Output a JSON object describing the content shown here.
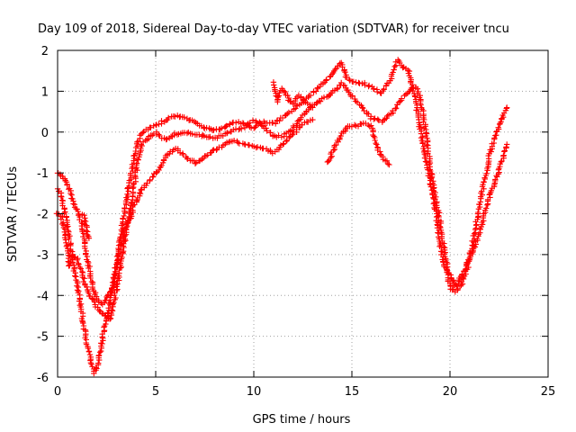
{
  "chart_data": {
    "type": "scatter",
    "title": "Day 109 of 2018, Sidereal Day-to-day VTEC variation (SDTVAR) for receiver tncu",
    "xlabel": "GPS time / hours",
    "ylabel": "SDTVAR / TECUs",
    "xlim": [
      0,
      25
    ],
    "ylim": [
      -6,
      2
    ],
    "xticks": [
      0,
      5,
      10,
      15,
      20,
      25
    ],
    "yticks": [
      -6,
      -5,
      -4,
      -3,
      -2,
      -1,
      0,
      1,
      2
    ],
    "grid": true,
    "marker": "plus",
    "color": "#ff0000",
    "series": [
      {
        "points": [
          [
            0.0,
            -1.0
          ],
          [
            0.2,
            -1.05
          ],
          [
            0.4,
            -1.2
          ],
          [
            0.6,
            -1.4
          ],
          [
            0.8,
            -1.7
          ],
          [
            1.0,
            -1.9
          ],
          [
            1.2,
            -2.2
          ],
          [
            1.3,
            -2.5
          ],
          [
            1.4,
            -2.8
          ],
          [
            1.6,
            -3.3
          ],
          [
            1.8,
            -3.8
          ],
          [
            2.0,
            -4.1
          ],
          [
            2.3,
            -4.2
          ],
          [
            2.5,
            -4.1
          ],
          [
            2.8,
            -3.8
          ],
          [
            3.0,
            -3.3
          ],
          [
            3.2,
            -2.6
          ],
          [
            3.4,
            -2.0
          ],
          [
            3.6,
            -1.4
          ],
          [
            3.8,
            -0.9
          ],
          [
            4.0,
            -0.4
          ],
          [
            4.2,
            -0.1
          ],
          [
            4.5,
            0.05
          ],
          [
            5.0,
            0.15
          ],
          [
            5.5,
            0.3
          ],
          [
            6.0,
            0.4
          ],
          [
            6.5,
            0.35
          ],
          [
            7.0,
            0.25
          ],
          [
            7.5,
            0.1
          ],
          [
            8.0,
            0.05
          ],
          [
            8.5,
            0.1
          ],
          [
            9.0,
            0.25
          ],
          [
            9.5,
            0.2
          ],
          [
            10.0,
            0.1
          ],
          [
            10.5,
            0.25
          ],
          [
            11.0,
            0.2
          ],
          [
            11.5,
            0.35
          ],
          [
            12.0,
            0.55
          ],
          [
            12.5,
            0.75
          ],
          [
            13.0,
            0.95
          ],
          [
            13.5,
            1.2
          ],
          [
            14.0,
            1.4
          ],
          [
            14.3,
            1.6
          ],
          [
            14.5,
            1.7
          ],
          [
            14.7,
            1.35
          ],
          [
            15.0,
            1.25
          ],
          [
            15.5,
            1.2
          ],
          [
            16.0,
            1.1
          ],
          [
            16.5,
            0.95
          ],
          [
            17.0,
            1.3
          ],
          [
            17.3,
            1.75
          ],
          [
            17.6,
            1.6
          ],
          [
            17.9,
            1.5
          ],
          [
            18.1,
            1.1
          ],
          [
            18.3,
            0.6
          ],
          [
            18.5,
            0.05
          ],
          [
            18.7,
            -0.5
          ],
          [
            19.0,
            -1.2
          ],
          [
            19.3,
            -2.0
          ],
          [
            19.5,
            -2.8
          ],
          [
            19.8,
            -3.4
          ],
          [
            20.0,
            -3.8
          ],
          [
            20.3,
            -3.9
          ],
          [
            20.6,
            -3.7
          ],
          [
            20.9,
            -3.3
          ],
          [
            21.2,
            -2.6
          ],
          [
            21.5,
            -1.8
          ],
          [
            21.8,
            -1.1
          ],
          [
            22.0,
            -0.6
          ],
          [
            22.3,
            -0.1
          ],
          [
            22.6,
            0.3
          ],
          [
            22.9,
            0.6
          ]
        ]
      },
      {
        "points": [
          [
            0.0,
            -2.0
          ],
          [
            0.2,
            -2.1
          ],
          [
            0.3,
            -2.3
          ],
          [
            0.5,
            -2.8
          ],
          [
            0.6,
            -3.3
          ],
          [
            0.8,
            -3.0
          ],
          [
            1.0,
            -3.1
          ],
          [
            1.2,
            -3.4
          ],
          [
            1.4,
            -3.7
          ],
          [
            1.6,
            -4.0
          ],
          [
            1.8,
            -4.1
          ],
          [
            2.0,
            -4.3
          ],
          [
            2.2,
            -4.4
          ],
          [
            2.5,
            -4.5
          ],
          [
            2.7,
            -4.6
          ],
          [
            2.9,
            -4.1
          ],
          [
            3.1,
            -3.6
          ],
          [
            3.3,
            -3.0
          ],
          [
            3.5,
            -2.4
          ],
          [
            3.7,
            -1.9
          ],
          [
            3.9,
            -1.3
          ],
          [
            4.1,
            -0.7
          ],
          [
            4.3,
            -0.3
          ],
          [
            4.6,
            -0.15
          ],
          [
            5.0,
            0.0
          ],
          [
            5.5,
            -0.2
          ],
          [
            6.0,
            -0.05
          ],
          [
            6.5,
            0.0
          ],
          [
            7.0,
            -0.05
          ],
          [
            7.5,
            -0.1
          ],
          [
            8.0,
            -0.15
          ],
          [
            8.5,
            -0.05
          ],
          [
            9.0,
            0.05
          ],
          [
            9.5,
            0.1
          ],
          [
            10.0,
            0.3
          ],
          [
            10.5,
            0.15
          ],
          [
            11.0,
            -0.1
          ],
          [
            11.5,
            -0.1
          ],
          [
            12.0,
            0.1
          ],
          [
            12.5,
            0.4
          ],
          [
            13.0,
            0.65
          ],
          [
            13.5,
            0.8
          ],
          [
            14.0,
            0.95
          ],
          [
            14.5,
            1.2
          ],
          [
            15.0,
            0.9
          ],
          [
            15.5,
            0.6
          ],
          [
            16.0,
            0.35
          ],
          [
            16.5,
            0.25
          ],
          [
            17.0,
            0.45
          ],
          [
            17.5,
            0.8
          ],
          [
            18.0,
            1.05
          ],
          [
            18.3,
            1.1
          ],
          [
            18.5,
            0.8
          ],
          [
            18.7,
            0.2
          ],
          [
            18.9,
            -0.5
          ],
          [
            19.1,
            -1.2
          ],
          [
            19.3,
            -1.7
          ],
          [
            19.5,
            -2.2
          ],
          [
            19.7,
            -2.9
          ],
          [
            19.9,
            -3.4
          ],
          [
            20.1,
            -3.6
          ],
          [
            20.3,
            -3.8
          ],
          [
            20.6,
            -3.5
          ],
          [
            20.9,
            -3.2
          ],
          [
            21.1,
            -3.0
          ],
          [
            21.4,
            -2.6
          ],
          [
            21.7,
            -2.1
          ],
          [
            22.0,
            -1.6
          ],
          [
            22.3,
            -1.2
          ],
          [
            22.6,
            -0.8
          ],
          [
            22.9,
            -0.3
          ]
        ]
      },
      {
        "points": [
          [
            0.0,
            -1.4
          ],
          [
            0.15,
            -1.5
          ],
          [
            0.3,
            -1.8
          ],
          [
            0.5,
            -2.3
          ],
          [
            0.7,
            -2.9
          ],
          [
            0.9,
            -3.5
          ],
          [
            1.1,
            -4.0
          ],
          [
            1.3,
            -4.6
          ],
          [
            1.5,
            -5.2
          ],
          [
            1.7,
            -5.6
          ],
          [
            1.9,
            -5.9
          ],
          [
            2.1,
            -5.6
          ],
          [
            2.3,
            -5.0
          ],
          [
            2.5,
            -4.6
          ],
          [
            2.7,
            -4.1
          ],
          [
            2.9,
            -3.5
          ],
          [
            3.1,
            -3.0
          ],
          [
            3.3,
            -2.6
          ],
          [
            3.5,
            -2.3
          ],
          [
            3.7,
            -2.1
          ],
          [
            3.9,
            -1.8
          ],
          [
            4.1,
            -1.6
          ],
          [
            4.3,
            -1.4
          ],
          [
            4.6,
            -1.25
          ],
          [
            5.0,
            -1.0
          ],
          [
            5.3,
            -0.8
          ],
          [
            5.6,
            -0.55
          ],
          [
            6.0,
            -0.4
          ],
          [
            6.5,
            -0.6
          ],
          [
            7.0,
            -0.75
          ],
          [
            7.5,
            -0.6
          ],
          [
            8.0,
            -0.45
          ],
          [
            8.5,
            -0.3
          ],
          [
            9.0,
            -0.2
          ],
          [
            9.5,
            -0.3
          ],
          [
            10.0,
            -0.35
          ],
          [
            10.5,
            -0.4
          ],
          [
            11.0,
            -0.5
          ],
          [
            11.5,
            -0.3
          ],
          [
            12.0,
            -0.05
          ],
          [
            12.5,
            0.2
          ],
          [
            13.0,
            0.3
          ]
        ]
      },
      {
        "points": [
          [
            13.8,
            -0.75
          ],
          [
            14.0,
            -0.5
          ],
          [
            14.2,
            -0.3
          ],
          [
            14.5,
            -0.05
          ],
          [
            14.8,
            0.15
          ],
          [
            15.2,
            0.15
          ],
          [
            15.6,
            0.2
          ],
          [
            16.0,
            0.15
          ],
          [
            16.3,
            -0.4
          ],
          [
            16.6,
            -0.65
          ],
          [
            16.9,
            -0.8
          ]
        ]
      },
      {
        "points": [
          [
            11.0,
            1.2
          ],
          [
            11.2,
            0.75
          ],
          [
            11.4,
            1.05
          ],
          [
            11.6,
            0.95
          ],
          [
            11.8,
            0.8
          ],
          [
            12.0,
            0.7
          ],
          [
            12.3,
            0.9
          ],
          [
            12.6,
            0.75
          ],
          [
            13.0,
            0.6
          ]
        ]
      },
      {
        "points": [
          [
            1.3,
            -2.0
          ],
          [
            1.4,
            -2.2
          ],
          [
            1.5,
            -2.5
          ],
          [
            1.6,
            -2.6
          ]
        ]
      }
    ]
  }
}
